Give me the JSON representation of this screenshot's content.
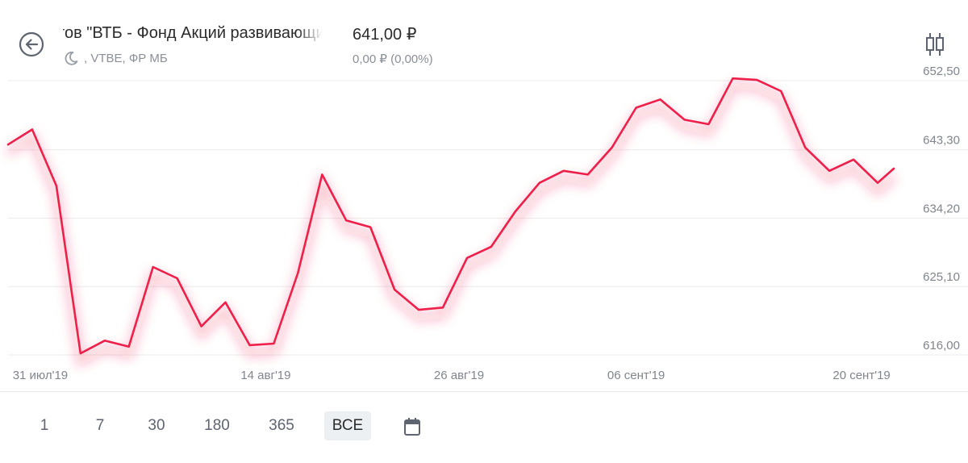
{
  "header": {
    "back_icon": "back-arrow-circle-icon",
    "title": "нтов \"ВТБ - Фонд Акций развивающихся рынков\"",
    "market_icon": "moon-icon",
    "subtitle": ", VTBE, ФР МБ",
    "price": "641,00 ₽",
    "change": "0,00 ₽ (0,00%)",
    "chart_type_icon": "candlestick-icon"
  },
  "periods": {
    "items": [
      "1",
      "7",
      "30",
      "180",
      "365",
      "ВСЕ"
    ],
    "active": "ВСЕ",
    "calendar_icon": "calendar-icon"
  },
  "colors": {
    "line": "#ee1f49",
    "grid": "#ececec",
    "tick_text": "#80858e",
    "active_period_bg": "#edf0f3"
  },
  "chart_data": {
    "type": "line",
    "title": "",
    "xlabel": "",
    "ylabel": "",
    "y_ticks": [
      "652,50",
      "643,30",
      "634,20",
      "625,10",
      "616,00"
    ],
    "y_tick_values": [
      652.5,
      643.3,
      634.2,
      625.1,
      616.0
    ],
    "x_tick_labels": [
      "31 июл'19",
      "14 авг'19",
      "26 авг'19",
      "06 сент'19",
      "20 сент'19"
    ],
    "x_tick_days": [
      2,
      16,
      28,
      39,
      53
    ],
    "ylim": [
      616.0,
      652.5
    ],
    "xlim": [
      0,
      55
    ],
    "grid": true,
    "legend": "none",
    "series": [
      {
        "x": [
          0,
          1.5,
          3,
          4.5,
          6,
          7.5,
          9,
          10.5,
          12,
          13.5,
          15,
          16.5,
          18,
          19.5,
          21,
          22.5,
          24,
          25.5,
          27,
          28.5,
          30,
          31.5,
          33,
          34.5,
          36,
          37.5,
          39,
          40.5,
          42,
          43.5,
          45,
          46.5,
          48,
          49.5,
          51,
          52.5,
          54,
          55
        ],
        "y": [
          644.0,
          646.0,
          638.5,
          616.2,
          617.9,
          617.1,
          627.7,
          626.2,
          619.8,
          623.0,
          617.3,
          617.5,
          626.9,
          640.0,
          633.9,
          633.0,
          624.7,
          622.0,
          622.3,
          628.9,
          630.4,
          635.1,
          638.9,
          640.5,
          640.0,
          643.6,
          648.9,
          650.0,
          647.3,
          646.7,
          652.8,
          652.6,
          651.1,
          643.6,
          640.5,
          642.0,
          638.9,
          640.8
        ]
      }
    ]
  }
}
